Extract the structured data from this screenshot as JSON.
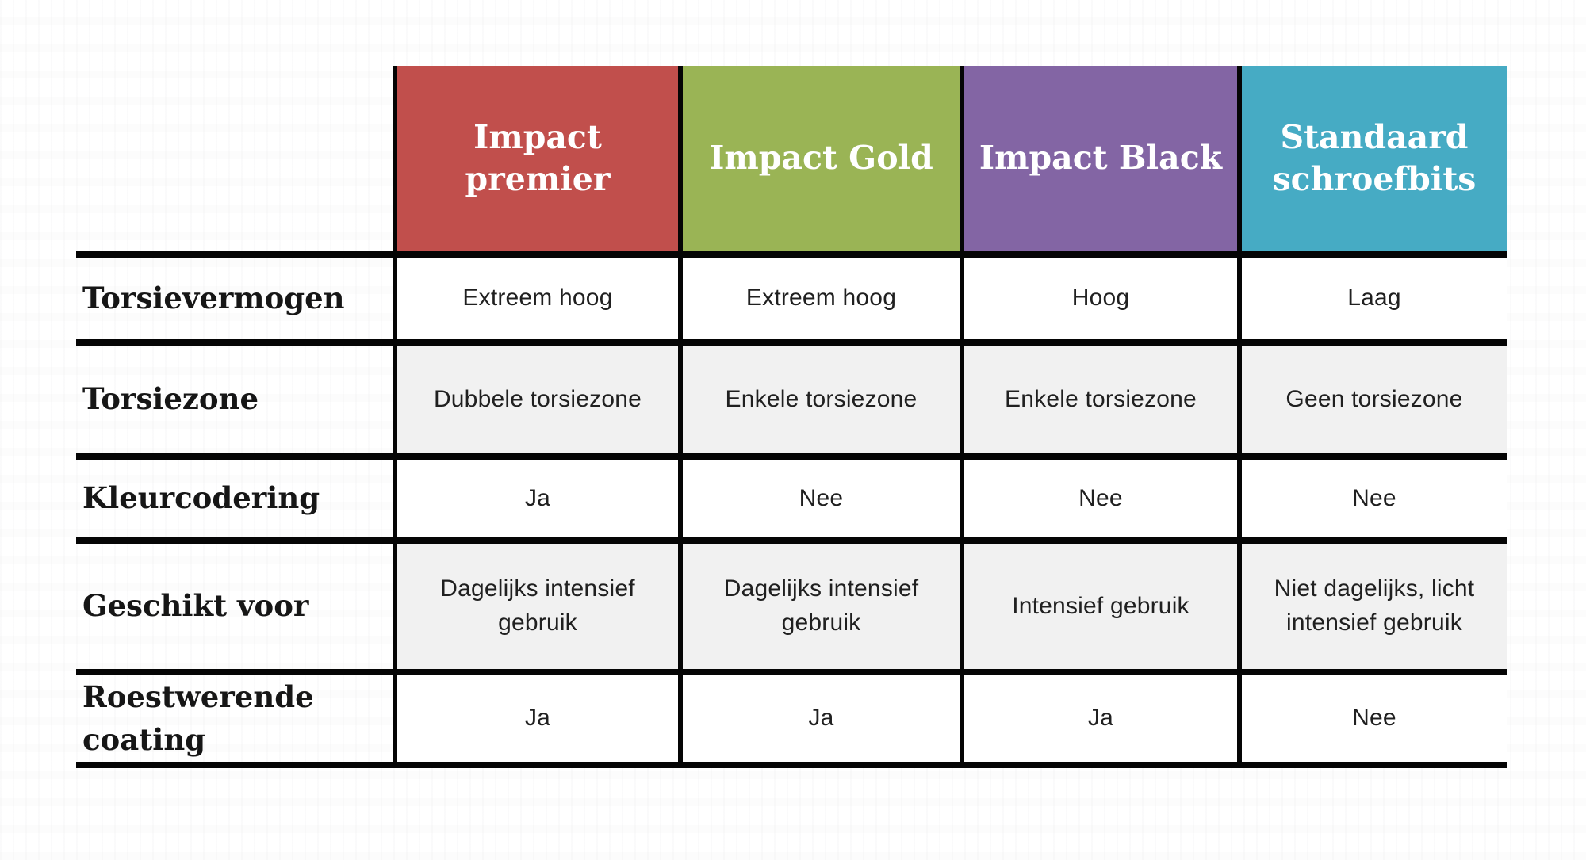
{
  "table": {
    "header": {
      "text_color": "#ffffff",
      "columns": [
        {
          "label": "Impact premier",
          "color": "#c14f4c"
        },
        {
          "label": "Impact Gold",
          "color": "#9ab455"
        },
        {
          "label": "Impact Black",
          "color": "#8365a4"
        },
        {
          "label": "Standaard\nschroefbits",
          "color": "#46abc4"
        }
      ]
    },
    "rows": [
      {
        "label": "Torsievermogen",
        "cells": [
          "Extreem hoog",
          "Extreem hoog",
          "Hoog",
          "Laag"
        ]
      },
      {
        "label": "Torsiezone",
        "cells": [
          "Dubbele torsiezone",
          "Enkele torsiezone",
          "Enkele torsiezone",
          "Geen torsiezone"
        ]
      },
      {
        "label": "Kleurcodering",
        "cells": [
          "Ja",
          "Nee",
          "Nee",
          "Nee"
        ]
      },
      {
        "label": "Geschikt voor",
        "cells": [
          "Dagelijks intensief\ngebruik",
          "Dagelijks intensief\ngebruik",
          "Intensief gebruik",
          "Niet dagelijks, licht\nintensief gebruik"
        ]
      },
      {
        "label": "Roestwerende\ncoating",
        "cells": [
          "Ja",
          "Ja",
          "Ja",
          "Nee"
        ]
      }
    ],
    "style": {
      "stripe_color": "#f1f1f1",
      "plain_color": "#ffffff",
      "border_color": "#050505",
      "label_text_color": "#161616",
      "cell_text_color": "#202020"
    }
  }
}
